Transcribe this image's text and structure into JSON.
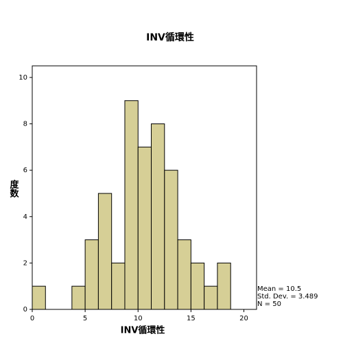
{
  "chart_data": {
    "type": "histogram",
    "title": "INV循環性",
    "x_label": "INV循環性",
    "y_label": "度数",
    "bins": [
      0,
      1.25,
      2.5,
      3.75,
      5,
      6.25,
      7.5,
      8.75,
      10,
      11.25,
      12.5,
      13.75,
      15,
      16.25,
      17.5,
      18.75
    ],
    "values": [
      1,
      0,
      0,
      1,
      3,
      5,
      2,
      9,
      7,
      8,
      6,
      3,
      2,
      1,
      2
    ],
    "color": "#d6cf96",
    "xlim": [
      0,
      21.2
    ],
    "xticks": [
      0,
      5,
      10,
      15,
      20
    ],
    "ylim": [
      0,
      10.5
    ],
    "yticks": [
      0,
      2,
      4,
      6,
      8,
      10
    ],
    "stats": [
      "Mean = 10.5",
      "Std. Dev. = 3.489",
      "N = 50"
    ]
  }
}
